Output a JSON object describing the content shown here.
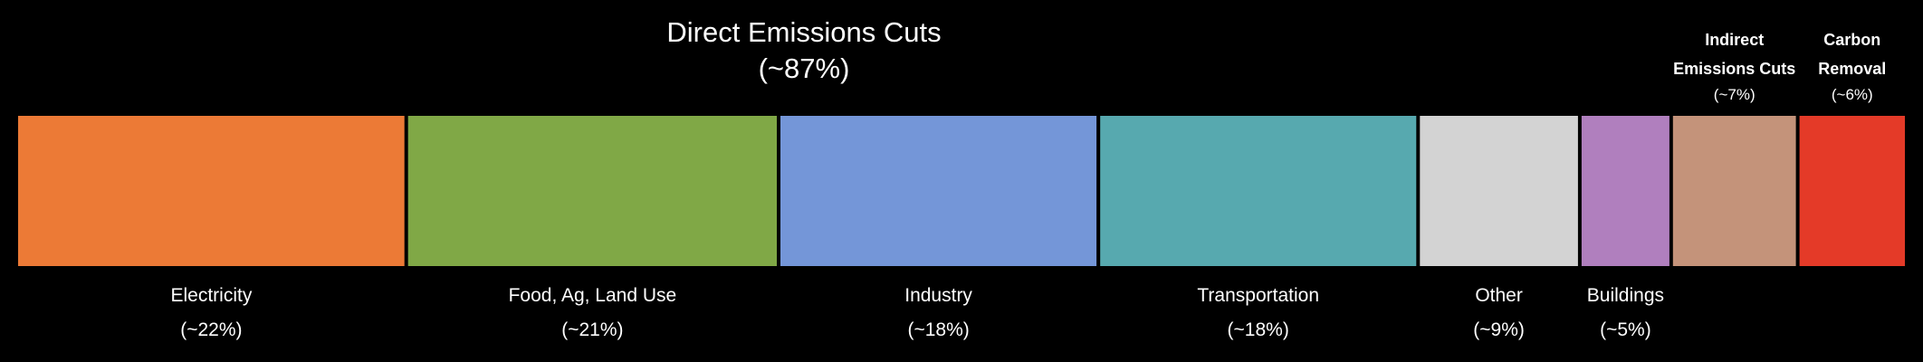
{
  "chart_data": {
    "type": "bar",
    "orientation": "horizontal-stacked",
    "title": "Direct Emissions Cuts",
    "subtitle": "(~87%)",
    "categories": [
      "Electricity",
      "Food, Ag, Land Use",
      "Industry",
      "Transportation",
      "Other",
      "Buildings",
      "Indirect Emissions Cuts",
      "Carbon Removal"
    ],
    "value_labels": [
      "(~22%)",
      "(~21%)",
      "(~18%)",
      "(~18%)",
      "(~9%)",
      "(~5%)",
      "(~7%)",
      "(~6%)"
    ],
    "values": [
      22,
      21,
      18,
      18,
      9,
      5,
      7,
      6
    ],
    "colors": [
      "#EC7A36",
      "#80A846",
      "#7496D8",
      "#57A9AF",
      "#D3D3D3",
      "#B07FBE",
      "#C4937A",
      "#E43A28"
    ],
    "label_position": [
      "below",
      "below",
      "below",
      "below",
      "below",
      "below",
      "above",
      "above"
    ]
  }
}
